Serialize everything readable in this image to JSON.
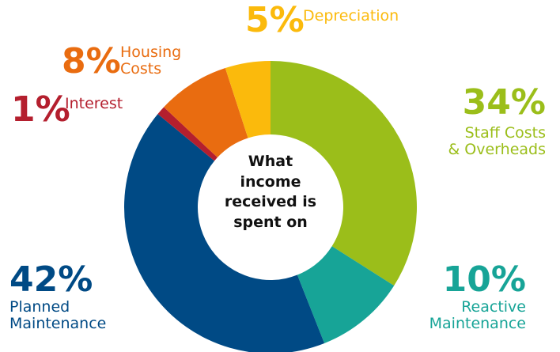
{
  "chart_data": {
    "type": "donut",
    "title": "What income received is spent on",
    "categories": [
      "Staff Costs\n& Overheads",
      "Reactive\nMaintenance",
      "Planned\nMaintenance",
      "Interest",
      "Housing\nCosts",
      "Depreciation"
    ],
    "values": [
      34,
      10,
      42,
      1,
      8,
      5
    ],
    "value_labels": [
      "34%",
      "10%",
      "42%",
      "1%",
      "8%",
      "5%"
    ],
    "colors": [
      "#9bbe1a",
      "#17a497",
      "#004a85",
      "#b41f2e",
      "#e96c10",
      "#fbba0c"
    ]
  }
}
